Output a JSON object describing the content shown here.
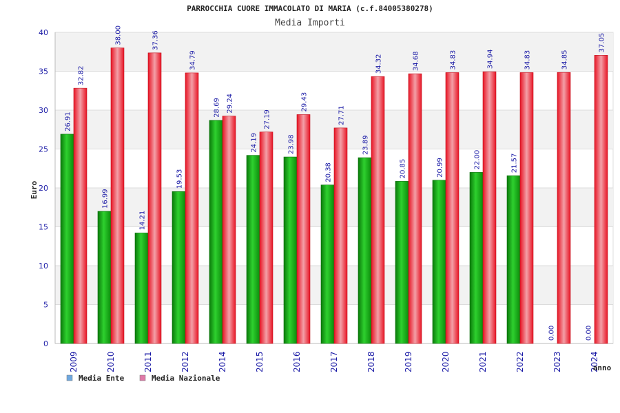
{
  "chart_data": {
    "type": "bar",
    "title": "PARROCCHIA CUORE IMMACOLATO DI MARIA (c.f.84005380278)",
    "subtitle": "Media Importi",
    "ylabel": "Euro",
    "xlabel": "anno",
    "ylim": [
      0,
      40
    ],
    "yticks": [
      0,
      5,
      10,
      15,
      20,
      25,
      30,
      35,
      40
    ],
    "grid": true,
    "legend_position": "bottom-left",
    "categories": [
      "2009",
      "2010",
      "2011",
      "2012",
      "2014",
      "2015",
      "2016",
      "2017",
      "2018",
      "2019",
      "2020",
      "2021",
      "2022",
      "2023",
      "2024"
    ],
    "series": [
      {
        "name": "Media Ente",
        "color": "#16b116",
        "legend_color": "#6fa8e0",
        "values": [
          26.91,
          16.99,
          14.21,
          19.53,
          28.69,
          24.19,
          23.98,
          20.38,
          23.89,
          20.85,
          20.99,
          22.0,
          21.57,
          0.0,
          0.0
        ],
        "labels": [
          "26.91",
          "16.99",
          "14.21",
          "19.53",
          "28.69",
          "24.19",
          "23.98",
          "20.38",
          "23.89",
          "20.85",
          "20.99",
          "22.00",
          "21.57",
          "0.00",
          "0.00"
        ]
      },
      {
        "name": "Media Nazionale",
        "color": "#e8202c",
        "legend_color": "#e07aa8",
        "values": [
          32.82,
          38.0,
          37.36,
          34.79,
          29.24,
          27.19,
          29.43,
          27.71,
          34.32,
          34.68,
          34.83,
          34.94,
          34.83,
          34.85,
          37.05
        ],
        "labels": [
          "32.82",
          "38.00",
          "37.36",
          "34.79",
          "29.24",
          "27.19",
          "29.43",
          "27.71",
          "34.32",
          "34.68",
          "34.83",
          "34.94",
          "34.83",
          "34.85",
          "37.05"
        ]
      }
    ]
  }
}
